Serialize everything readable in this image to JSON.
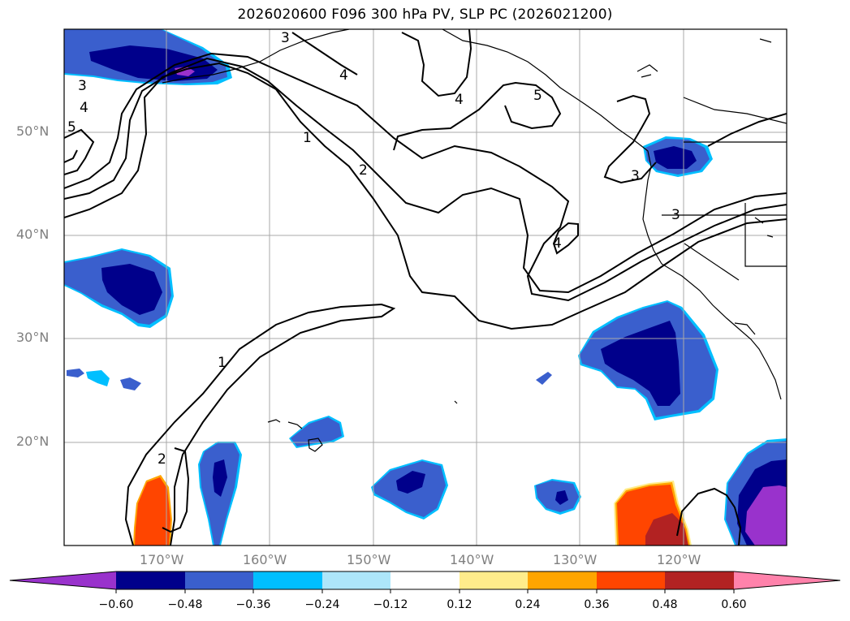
{
  "title": "2026020600 F096 300 hPa PV, SLP PC (2026021200)",
  "map": {
    "lat_labels": [
      "50°N",
      "40°N",
      "30°N",
      "20°N"
    ],
    "lon_labels": [
      "170°W",
      "160°W",
      "150°W",
      "140°W",
      "130°W",
      "120°W"
    ],
    "contour_labels": [
      "3",
      "4",
      "5",
      "4",
      "3",
      "1",
      "2",
      "5",
      "4",
      "4",
      "3",
      "3",
      "1",
      "2"
    ],
    "colors": {
      "purple": "#9932cc",
      "navy": "#00008b",
      "royal": "#3a5fcd",
      "cyan": "#00bfff",
      "lightblue": "#ade6fa",
      "white": "#ffffff",
      "yellow": "#ffec8b",
      "orange": "#ffa500",
      "orangered": "#ff4500",
      "brick": "#b22222",
      "pink": "#ff82ab"
    }
  },
  "colorbar": {
    "ticks": [
      "−0.60",
      "−0.48",
      "−0.36",
      "−0.24",
      "−0.12",
      "0.12",
      "0.24",
      "0.36",
      "0.48",
      "0.60"
    ],
    "bins": [
      {
        "range": "< -0.60",
        "color": "#9932cc"
      },
      {
        "range": "-0.60 to -0.48",
        "color": "#00008b"
      },
      {
        "range": "-0.48 to -0.36",
        "color": "#3a5fcd"
      },
      {
        "range": "-0.36 to -0.24",
        "color": "#00bfff"
      },
      {
        "range": "-0.24 to -0.12",
        "color": "#ade6fa"
      },
      {
        "range": "-0.12 to 0.12",
        "color": "#ffffff"
      },
      {
        "range": "0.12 to 0.24",
        "color": "#ffec8b"
      },
      {
        "range": "0.24 to 0.36",
        "color": "#ffa500"
      },
      {
        "range": "0.36 to 0.48",
        "color": "#ff4500"
      },
      {
        "range": "0.48 to 0.60",
        "color": "#b22222"
      },
      {
        "range": "> 0.60",
        "color": "#ff82ab"
      }
    ]
  }
}
